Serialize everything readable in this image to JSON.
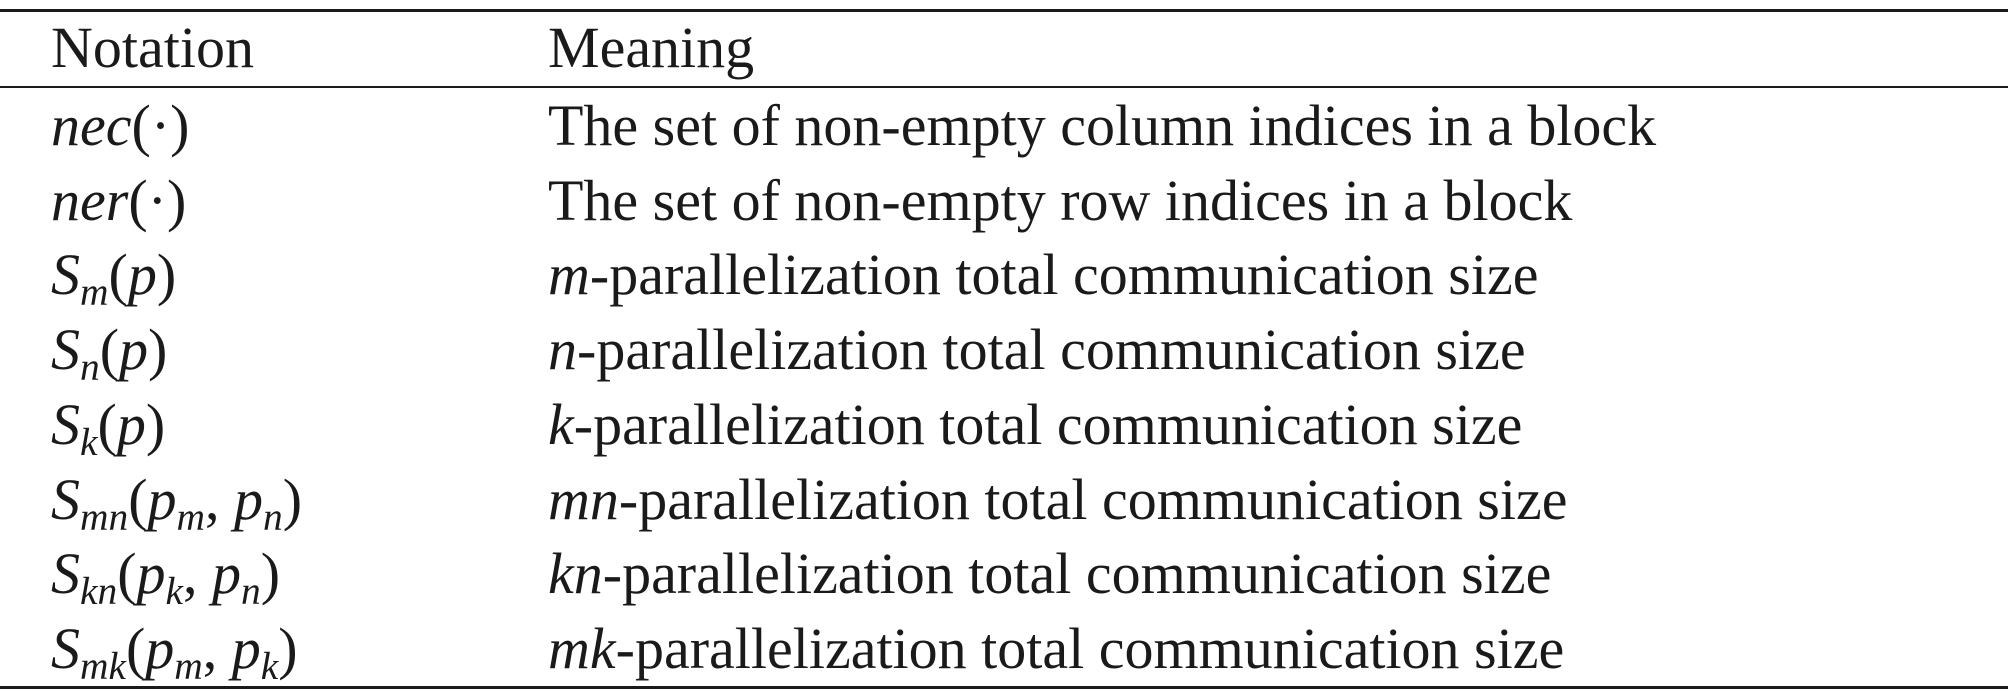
{
  "table": {
    "headers": [
      "Notation",
      "Meaning"
    ],
    "rows": [
      {
        "notation": [
          {
            "t": "nec"
          },
          {
            "u": "(·)"
          }
        ],
        "meaning_var": "",
        "meaning": "The set of non-empty column indices in a block"
      },
      {
        "notation": [
          {
            "t": "ner"
          },
          {
            "u": "(·)"
          }
        ],
        "meaning_var": "",
        "meaning": "The set of non-empty row indices in a block"
      },
      {
        "notation": [
          {
            "t": "S"
          },
          {
            "s": "m"
          },
          {
            "u": "("
          },
          {
            "t": "p"
          },
          {
            "u": ")"
          }
        ],
        "meaning_var": "m",
        "meaning": "-parallelization total communication size"
      },
      {
        "notation": [
          {
            "t": "S"
          },
          {
            "s": "n"
          },
          {
            "u": "("
          },
          {
            "t": "p"
          },
          {
            "u": ")"
          }
        ],
        "meaning_var": "n",
        "meaning": "-parallelization total communication size"
      },
      {
        "notation": [
          {
            "t": "S"
          },
          {
            "s": "k"
          },
          {
            "u": "("
          },
          {
            "t": "p"
          },
          {
            "u": ")"
          }
        ],
        "meaning_var": "k",
        "meaning": "-parallelization total communication size"
      },
      {
        "notation": [
          {
            "t": "S"
          },
          {
            "s": "mn"
          },
          {
            "u": "("
          },
          {
            "t": "p"
          },
          {
            "s": "m"
          },
          {
            "u": ", "
          },
          {
            "t": "p"
          },
          {
            "s": "n"
          },
          {
            "u": ")"
          }
        ],
        "meaning_var": "mn",
        "meaning": "-parallelization total communication size"
      },
      {
        "notation": [
          {
            "t": "S"
          },
          {
            "s": "kn"
          },
          {
            "u": "("
          },
          {
            "t": "p"
          },
          {
            "s": "k"
          },
          {
            "u": ", "
          },
          {
            "t": "p"
          },
          {
            "s": "n"
          },
          {
            "u": ")"
          }
        ],
        "meaning_var": "kn",
        "meaning": "-parallelization total communication size"
      },
      {
        "notation": [
          {
            "t": "S"
          },
          {
            "s": "mk"
          },
          {
            "u": "("
          },
          {
            "t": "p"
          },
          {
            "s": "m"
          },
          {
            "u": ", "
          },
          {
            "t": "p"
          },
          {
            "s": "k"
          },
          {
            "u": ")"
          }
        ],
        "meaning_var": "mk",
        "meaning": "-parallelization total communication size"
      }
    ]
  }
}
